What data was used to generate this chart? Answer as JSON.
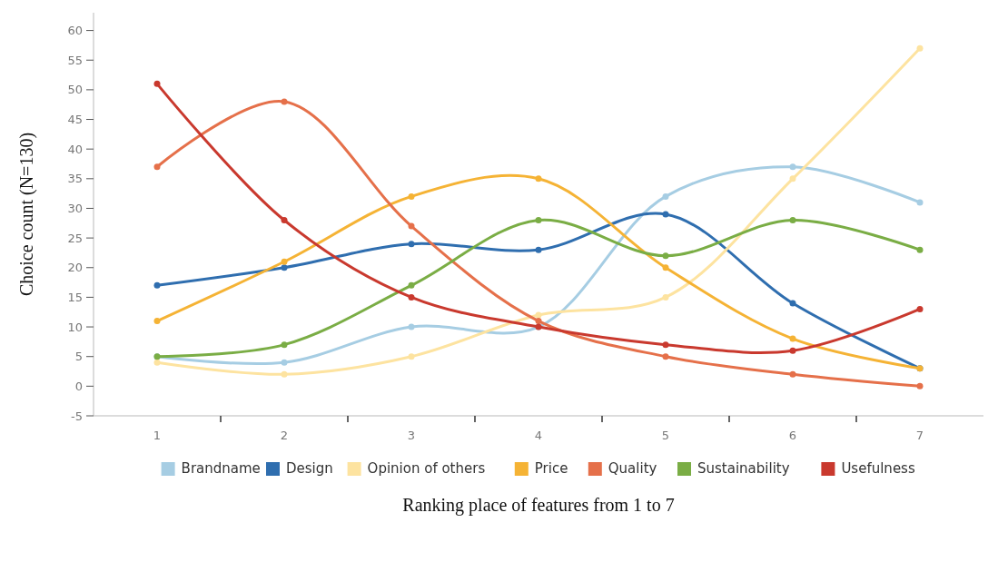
{
  "chart_data": {
    "type": "line",
    "xlabel": "Ranking place of features from 1 to 7",
    "ylabel": "Choice count (N=130)",
    "categories": [
      "1",
      "2",
      "3",
      "4",
      "5",
      "6",
      "7"
    ],
    "ylim": [
      -5,
      63
    ],
    "yticks": [
      -5,
      0,
      5,
      10,
      15,
      20,
      25,
      30,
      35,
      40,
      45,
      50,
      55,
      60
    ],
    "grid": false,
    "legend": "bottom",
    "marker": "circle",
    "line_style": "solid",
    "series": [
      {
        "name": "Brandname",
        "color": "#a6cde3",
        "values": [
          5,
          4,
          10,
          10,
          32,
          37,
          31
        ]
      },
      {
        "name": "Design",
        "color": "#2f6eaf",
        "values": [
          17,
          20,
          24,
          23,
          29,
          14,
          3
        ]
      },
      {
        "name": "Opinion of others",
        "color": "#fde3a0",
        "values": [
          4,
          2,
          5,
          12,
          15,
          35,
          57
        ]
      },
      {
        "name": "Price",
        "color": "#f5b335",
        "values": [
          11,
          21,
          32,
          35,
          20,
          8,
          3
        ]
      },
      {
        "name": "Quality",
        "color": "#e5704a",
        "values": [
          37,
          48,
          27,
          11,
          5,
          2,
          0
        ]
      },
      {
        "name": "Sustainability",
        "color": "#7aad45",
        "values": [
          5,
          7,
          17,
          28,
          22,
          28,
          23
        ]
      },
      {
        "name": "Usefulness",
        "color": "#c9392e",
        "values": [
          51,
          28,
          15,
          10,
          7,
          6,
          13
        ]
      }
    ]
  }
}
